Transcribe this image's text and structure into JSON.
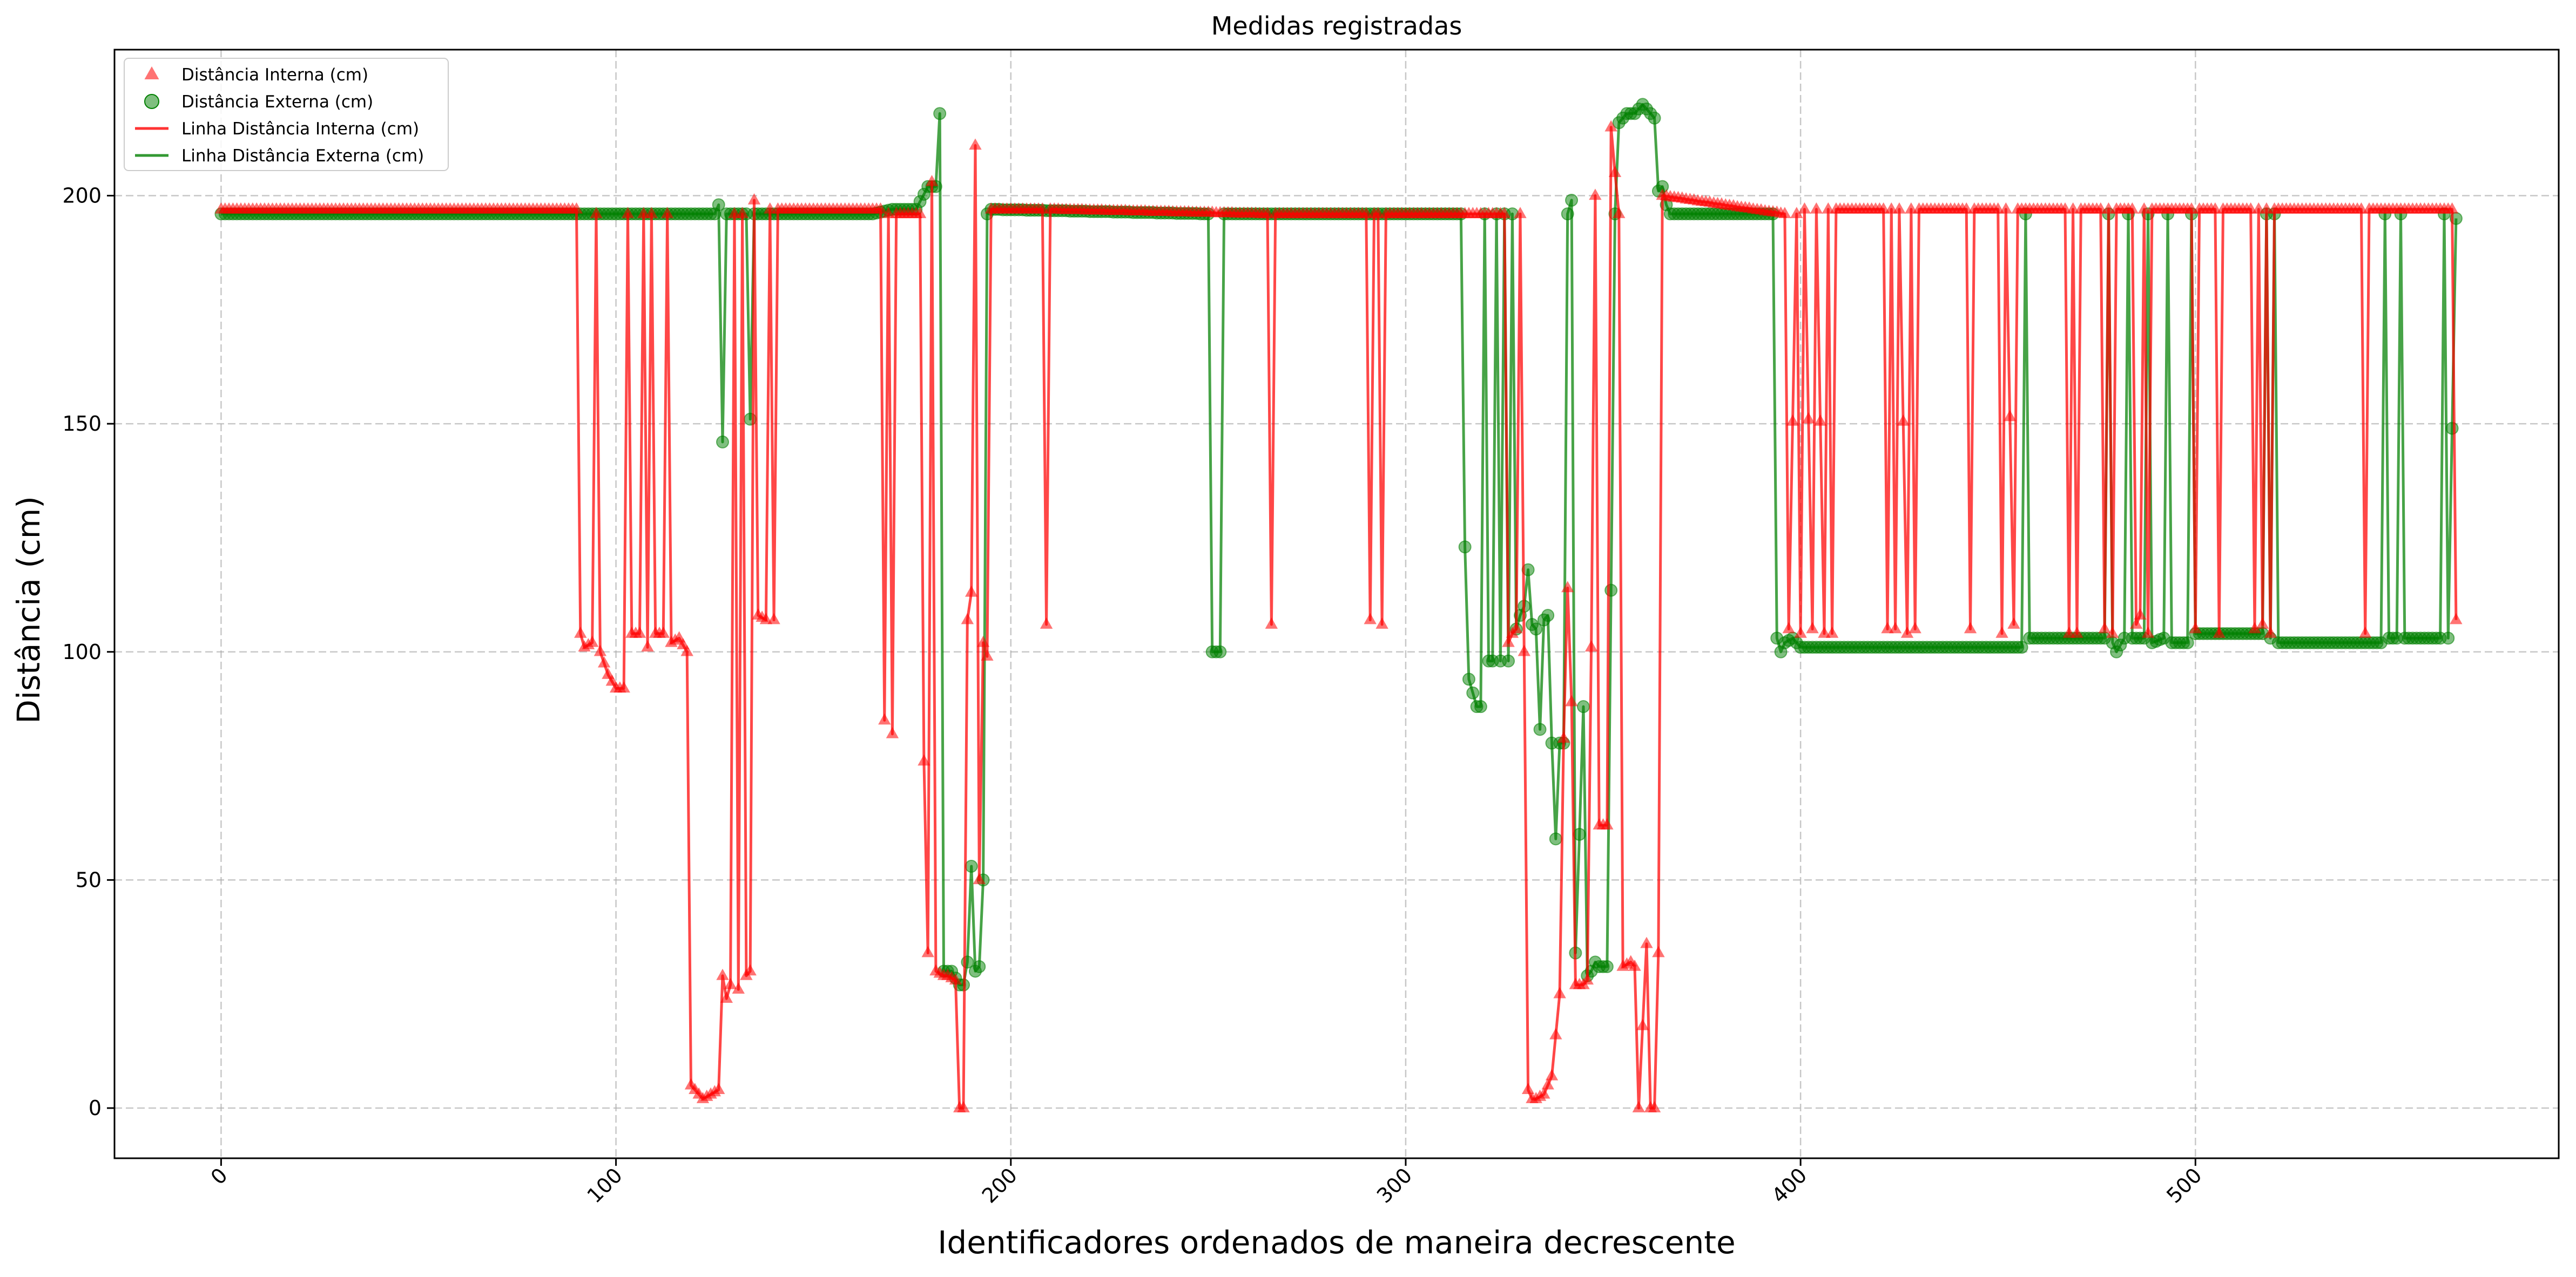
{
  "chart_data": {
    "type": "line",
    "title": "Medidas registradas",
    "xlabel": "Identificadores ordenados de maneira decrescente",
    "ylabel": "Distância (cm)",
    "xlim": [
      -27,
      592
    ],
    "ylim": [
      -11,
      232
    ],
    "xticks": [
      0,
      100,
      200,
      300,
      400,
      500
    ],
    "xtick_labels": [
      "0",
      "100",
      "200",
      "300",
      "400",
      "500"
    ],
    "yticks": [
      0,
      50,
      100,
      150,
      200
    ],
    "ytick_labels": [
      "0",
      "50",
      "100",
      "150",
      "200"
    ],
    "grid": true,
    "legend_position": "top-left",
    "legend": [
      {
        "label": "Distância Interna (cm)",
        "kind": "marker",
        "marker": "triangle",
        "color": "#ff0000"
      },
      {
        "label": "Distância Externa (cm)",
        "kind": "marker",
        "marker": "circle",
        "color": "#008000"
      },
      {
        "label": "Linha Distância Interna (cm)",
        "kind": "line",
        "color": "#ff0000"
      },
      {
        "label": "Linha Distância Externa (cm)",
        "kind": "line",
        "color": "#008000"
      }
    ],
    "series": [
      {
        "name": "Distância Interna (cm)",
        "color": "#ff0000",
        "marker": "triangle",
        "segments": [
          [
            0,
            197
          ],
          [
            90,
            197
          ],
          [
            91,
            104
          ],
          [
            92,
            101
          ],
          [
            94,
            102
          ],
          [
            95,
            196
          ],
          [
            96,
            100
          ],
          [
            98,
            95
          ],
          [
            100,
            92
          ],
          [
            102,
            92
          ],
          [
            103,
            196
          ],
          [
            104,
            104
          ],
          [
            106,
            104
          ],
          [
            107,
            196
          ],
          [
            108,
            101
          ],
          [
            109,
            196
          ],
          [
            110,
            104
          ],
          [
            112,
            104
          ],
          [
            113,
            196
          ],
          [
            114,
            102
          ],
          [
            116,
            103
          ],
          [
            118,
            100
          ],
          [
            119,
            5
          ],
          [
            121,
            3
          ],
          [
            122,
            2
          ],
          [
            124,
            3
          ],
          [
            126,
            4
          ],
          [
            127,
            29
          ],
          [
            128,
            24
          ],
          [
            129,
            27
          ],
          [
            130,
            196
          ],
          [
            131,
            26
          ],
          [
            132,
            196
          ],
          [
            133,
            29
          ],
          [
            134,
            30
          ],
          [
            135,
            199
          ],
          [
            136,
            108
          ],
          [
            138,
            107
          ],
          [
            139,
            197
          ],
          [
            140,
            107
          ],
          [
            141,
            197
          ],
          [
            167,
            197
          ],
          [
            168,
            85
          ],
          [
            169,
            196
          ],
          [
            170,
            82
          ],
          [
            171,
            196
          ],
          [
            177,
            196
          ],
          [
            178,
            76
          ],
          [
            179,
            34
          ],
          [
            180,
            203
          ],
          [
            181,
            30
          ],
          [
            183,
            29
          ],
          [
            184,
            29
          ],
          [
            186,
            28
          ],
          [
            187,
            0
          ],
          [
            188,
            0
          ],
          [
            189,
            107
          ],
          [
            190,
            113
          ],
          [
            191,
            211
          ],
          [
            192,
            50
          ],
          [
            193,
            102
          ],
          [
            194,
            99
          ],
          [
            195,
            197
          ],
          [
            208,
            197
          ],
          [
            209,
            106
          ],
          [
            210,
            197
          ],
          [
            265,
            196
          ],
          [
            266,
            106
          ],
          [
            267,
            196
          ],
          [
            290,
            196
          ],
          [
            291,
            107
          ],
          [
            292,
            196
          ],
          [
            293,
            196
          ],
          [
            294,
            106
          ],
          [
            295,
            196
          ],
          [
            325,
            196
          ],
          [
            326,
            102
          ],
          [
            327,
            104
          ],
          [
            328,
            105
          ],
          [
            329,
            196
          ],
          [
            330,
            100
          ],
          [
            331,
            4
          ],
          [
            332,
            2
          ],
          [
            333,
            2
          ],
          [
            335,
            3
          ],
          [
            337,
            7
          ],
          [
            339,
            25
          ],
          [
            340,
            81
          ],
          [
            341,
            114
          ],
          [
            342,
            89
          ],
          [
            343,
            27
          ],
          [
            345,
            27
          ],
          [
            346,
            28
          ],
          [
            347,
            101
          ],
          [
            348,
            200
          ],
          [
            349,
            62
          ],
          [
            351,
            62
          ],
          [
            352,
            215
          ],
          [
            353,
            205
          ],
          [
            354,
            196
          ],
          [
            355,
            31
          ],
          [
            357,
            32
          ],
          [
            358,
            31
          ],
          [
            359,
            0
          ],
          [
            361,
            36
          ],
          [
            362,
            0
          ],
          [
            363,
            0
          ],
          [
            364,
            34
          ],
          [
            365,
            200
          ],
          [
            396,
            196
          ],
          [
            397,
            105
          ],
          [
            399,
            196
          ],
          [
            400,
            104
          ],
          [
            401,
            197
          ],
          [
            403,
            105
          ],
          [
            404,
            197
          ],
          [
            406,
            104
          ],
          [
            407,
            197
          ],
          [
            408,
            104
          ],
          [
            409,
            197
          ],
          [
            421,
            197
          ],
          [
            422,
            105
          ],
          [
            423,
            197
          ],
          [
            424,
            105
          ],
          [
            425,
            197
          ],
          [
            427,
            104
          ],
          [
            428,
            197
          ],
          [
            429,
            105
          ],
          [
            430,
            197
          ],
          [
            442,
            197
          ],
          [
            443,
            105
          ],
          [
            444,
            197
          ],
          [
            450,
            197
          ],
          [
            451,
            104
          ],
          [
            452,
            197
          ],
          [
            454,
            106
          ],
          [
            455,
            197
          ],
          [
            467,
            197
          ],
          [
            468,
            104
          ],
          [
            469,
            197
          ],
          [
            470,
            104
          ],
          [
            471,
            197
          ],
          [
            476,
            197
          ],
          [
            477,
            105
          ],
          [
            478,
            197
          ],
          [
            479,
            104
          ],
          [
            480,
            197
          ],
          [
            484,
            197
          ],
          [
            485,
            106
          ],
          [
            486,
            108
          ],
          [
            487,
            197
          ],
          [
            488,
            104
          ],
          [
            489,
            197
          ],
          [
            499,
            197
          ],
          [
            500,
            105
          ],
          [
            501,
            197
          ],
          [
            505,
            197
          ],
          [
            506,
            104
          ],
          [
            507,
            197
          ],
          [
            514,
            197
          ],
          [
            515,
            105
          ],
          [
            516,
            197
          ],
          [
            517,
            106
          ],
          [
            518,
            197
          ],
          [
            519,
            104
          ],
          [
            520,
            197
          ],
          [
            542,
            197
          ],
          [
            543,
            104
          ],
          [
            544,
            197
          ],
          [
            565,
            197
          ],
          [
            566,
            107
          ]
        ]
      },
      {
        "name": "Distância Externa (cm)",
        "color": "#008000",
        "marker": "circle",
        "segments": [
          [
            0,
            196
          ],
          [
            125,
            196
          ],
          [
            126,
            198
          ],
          [
            127,
            146
          ],
          [
            128,
            196
          ],
          [
            133,
            196
          ],
          [
            134,
            151
          ],
          [
            135,
            196
          ],
          [
            165,
            196
          ],
          [
            170,
            197
          ],
          [
            176,
            197
          ],
          [
            179,
            202
          ],
          [
            181,
            202
          ],
          [
            182,
            218
          ],
          [
            183,
            30
          ],
          [
            185,
            30
          ],
          [
            187,
            27
          ],
          [
            188,
            27
          ],
          [
            189,
            32
          ],
          [
            190,
            53
          ],
          [
            191,
            30
          ],
          [
            192,
            31
          ],
          [
            193,
            50
          ],
          [
            194,
            196
          ],
          [
            195,
            197
          ],
          [
            250,
            196
          ],
          [
            251,
            100
          ],
          [
            253,
            100
          ],
          [
            254,
            196
          ],
          [
            314,
            196
          ],
          [
            315,
            123
          ],
          [
            316,
            94
          ],
          [
            317,
            91
          ],
          [
            318,
            88
          ],
          [
            319,
            88
          ],
          [
            320,
            196
          ],
          [
            321,
            98
          ],
          [
            322,
            98
          ],
          [
            323,
            196
          ],
          [
            324,
            98
          ],
          [
            325,
            196
          ],
          [
            326,
            98
          ],
          [
            327,
            196
          ],
          [
            328,
            105
          ],
          [
            329,
            108
          ],
          [
            330,
            110
          ],
          [
            331,
            118
          ],
          [
            332,
            106
          ],
          [
            333,
            105
          ],
          [
            334,
            83
          ],
          [
            335,
            107
          ],
          [
            336,
            108
          ],
          [
            337,
            80
          ],
          [
            338,
            59
          ],
          [
            339,
            80
          ],
          [
            340,
            80
          ],
          [
            341,
            196
          ],
          [
            342,
            199
          ],
          [
            343,
            34
          ],
          [
            344,
            60
          ],
          [
            345,
            88
          ],
          [
            346,
            29
          ],
          [
            347,
            30
          ],
          [
            348,
            32
          ],
          [
            349,
            31
          ],
          [
            351,
            31
          ],
          [
            353,
            196
          ],
          [
            354,
            216
          ],
          [
            356,
            218
          ],
          [
            358,
            218
          ],
          [
            360,
            220
          ],
          [
            361,
            219
          ],
          [
            362,
            218
          ],
          [
            363,
            217
          ],
          [
            364,
            201
          ],
          [
            365,
            202
          ],
          [
            366,
            198
          ],
          [
            367,
            196
          ],
          [
            393,
            196
          ],
          [
            394,
            103
          ],
          [
            395,
            100
          ],
          [
            396,
            102
          ],
          [
            398,
            103
          ],
          [
            400,
            101
          ],
          [
            456,
            101
          ],
          [
            457,
            196
          ],
          [
            458,
            103
          ],
          [
            477,
            103
          ],
          [
            478,
            196
          ],
          [
            479,
            102
          ],
          [
            480,
            100
          ],
          [
            482,
            103
          ],
          [
            483,
            196
          ],
          [
            484,
            103
          ],
          [
            487,
            103
          ],
          [
            488,
            196
          ],
          [
            489,
            102
          ],
          [
            492,
            103
          ],
          [
            493,
            196
          ],
          [
            494,
            102
          ],
          [
            498,
            102
          ],
          [
            499,
            196
          ],
          [
            500,
            104
          ],
          [
            517,
            104
          ],
          [
            518,
            196
          ],
          [
            519,
            103
          ],
          [
            520,
            196
          ],
          [
            521,
            102
          ],
          [
            547,
            102
          ],
          [
            548,
            196
          ],
          [
            549,
            103
          ],
          [
            551,
            103
          ],
          [
            552,
            196
          ],
          [
            553,
            103
          ],
          [
            562,
            103
          ],
          [
            563,
            196
          ],
          [
            564,
            103
          ],
          [
            566,
            195
          ]
        ]
      }
    ]
  }
}
